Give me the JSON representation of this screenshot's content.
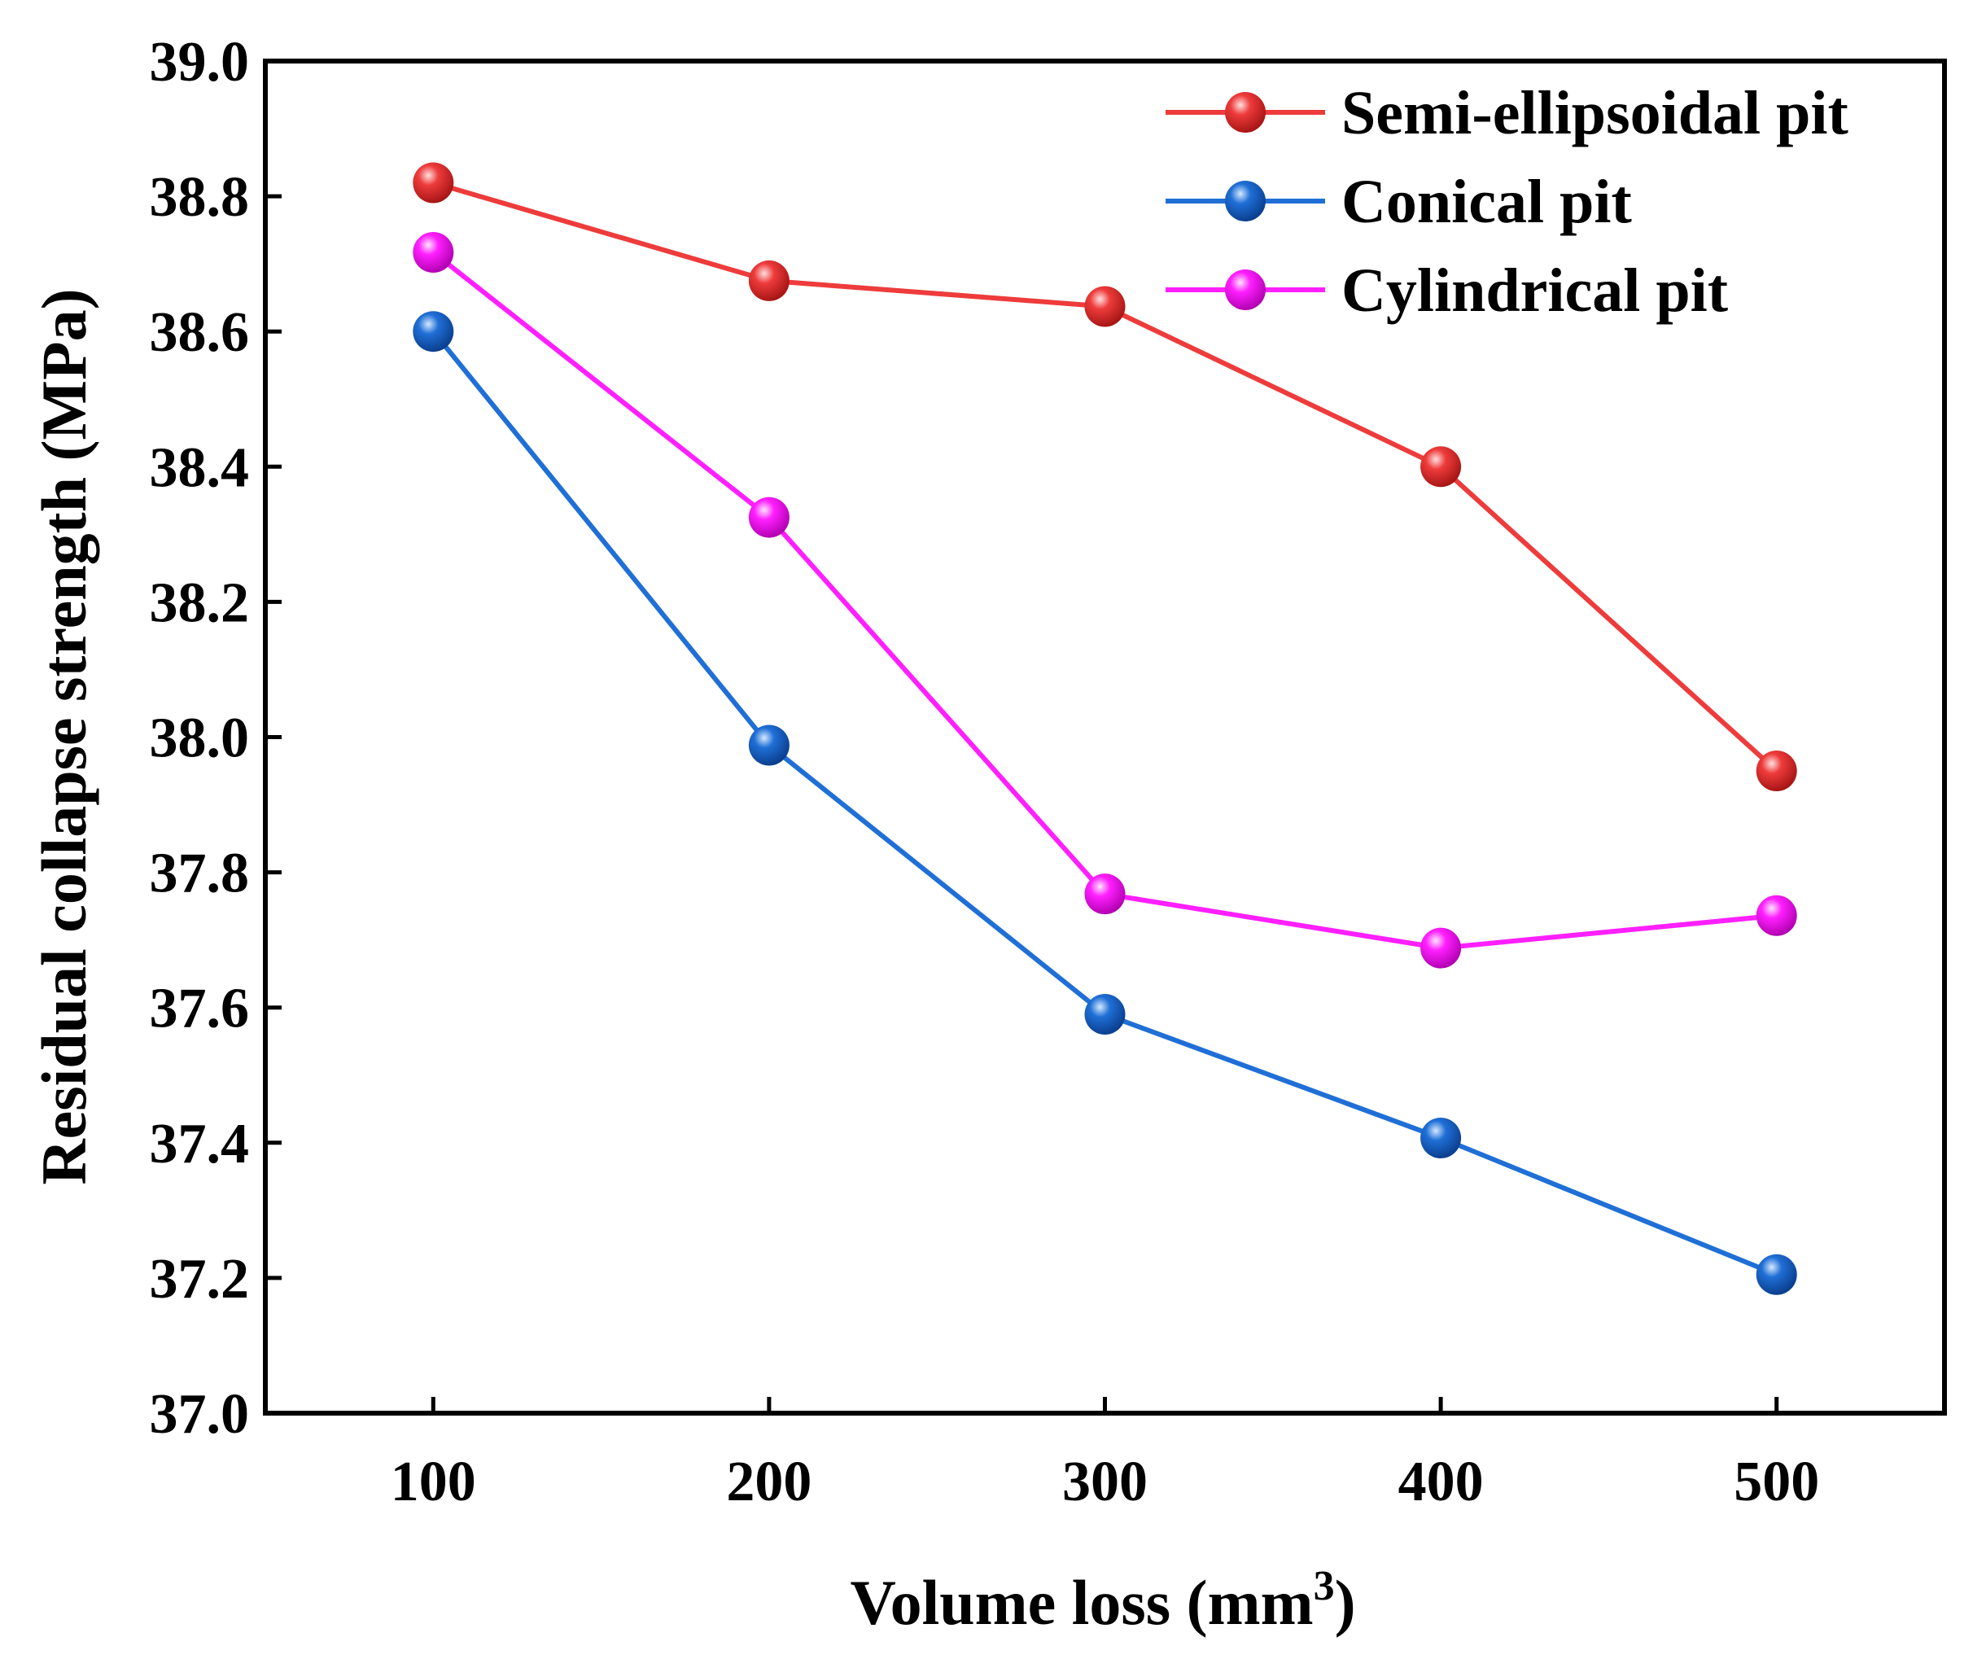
{
  "chart_data": {
    "type": "line",
    "x": [
      100,
      200,
      300,
      400,
      500
    ],
    "x_tick_labels": [
      "100",
      "200",
      "300",
      "400",
      "500"
    ],
    "xlim": [
      50,
      550
    ],
    "ylim": [
      37.0,
      39.0
    ],
    "y_tick_labels": [
      "37.0",
      "37.2",
      "37.4",
      "37.6",
      "37.8",
      "38.0",
      "38.2",
      "38.4",
      "38.6",
      "38.8",
      "39.0"
    ],
    "xlabel": "Volume loss (mm",
    "xlabel_sup": "3",
    "xlabel_suffix": ")",
    "ylabel": "Residual collapse strength (MPa)",
    "grid": false,
    "legend_position": "top-right",
    "series": [
      {
        "name": "Semi-ellipsoidal pit",
        "color": "#ee3b3b",
        "values": [
          38.82,
          38.675,
          38.637,
          38.4,
          37.95
        ]
      },
      {
        "name": "Conical pit",
        "color": "#1f6fd6",
        "values": [
          38.6,
          37.988,
          37.59,
          37.407,
          37.205
        ]
      },
      {
        "name": "Cylindrical pit",
        "color": "#ff1fff",
        "values": [
          38.717,
          38.325,
          37.768,
          37.688,
          37.736
        ]
      }
    ]
  }
}
